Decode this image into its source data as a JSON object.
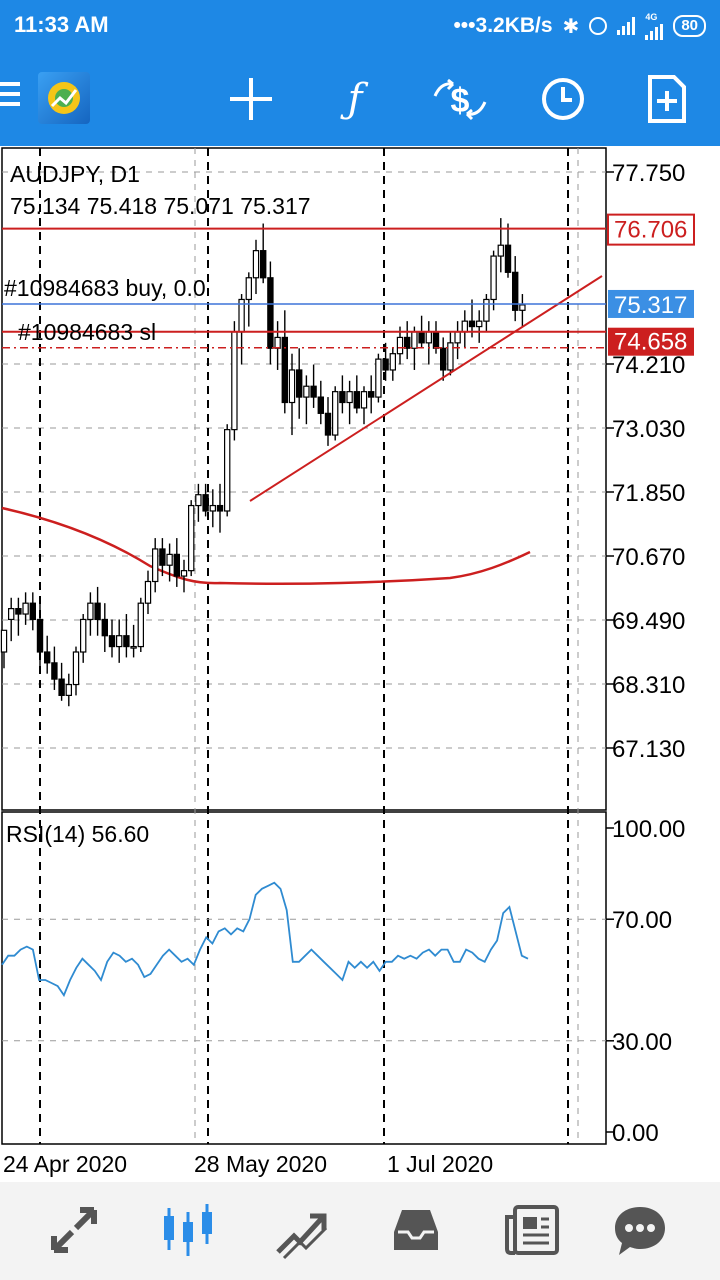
{
  "status_bar": {
    "time": "11:33 AM",
    "net_speed": "•••3.2KB/s",
    "network_type": "4G",
    "battery": "80",
    "icons": [
      "bluetooth-icon",
      "alarm-icon",
      "signal-icon",
      "wifi-signal-icon",
      "battery-icon"
    ]
  },
  "toolbar": {
    "icons": [
      "menu-icon",
      "app-logo-icon",
      "crosshair-icon",
      "indicators-icon",
      "currency-icon",
      "timeframe-clock-icon",
      "new-object-icon"
    ]
  },
  "chart": {
    "symbol": "AUDJPY, D1",
    "ohlc": "75.134 75.418 75.071 75.317",
    "order_label": "#10984683 buy, 0.0",
    "sl_label": "#10984683 sl",
    "price_axis": [
      "77.750",
      "74.210",
      "73.030",
      "71.850",
      "70.670",
      "69.490",
      "68.310",
      "67.130"
    ],
    "tags": {
      "resistance": "76.706",
      "current": "75.317",
      "stop_loss": "74.658"
    },
    "colors": {
      "up_candle": "#ffffff",
      "down_candle": "#000000",
      "red_line": "#cc1f1f",
      "current_price_line": "#3d74d9",
      "current_tag": "#3b8fe4",
      "rsi_line": "#2f8bd1"
    },
    "rsi": {
      "label": "RSI(14) 56.60",
      "axis": [
        "100.00",
        "70.00",
        "30.00",
        "0.00"
      ],
      "values": [
        55,
        58,
        58,
        60,
        61,
        60,
        50,
        50,
        49,
        48,
        45,
        50,
        54,
        57,
        55,
        53,
        50,
        56,
        59,
        58,
        56,
        57,
        55,
        51,
        52,
        55,
        58,
        60,
        58,
        56,
        57,
        55,
        60,
        64,
        62,
        66,
        67,
        65,
        67,
        66,
        70,
        78,
        80,
        81,
        82,
        80,
        73,
        56,
        56,
        58,
        60,
        58,
        56,
        54,
        52,
        50,
        56,
        54,
        56,
        54,
        56,
        53,
        56,
        56,
        58,
        57,
        58,
        57,
        59,
        60,
        58,
        60,
        60,
        56,
        56,
        60,
        59,
        57,
        56,
        60,
        63,
        72,
        74,
        66,
        58,
        57
      ]
    },
    "dates": [
      "24 Apr 2020",
      "28 May 2020",
      "1 Jul 2020"
    ]
  },
  "bottom_nav": {
    "items": [
      {
        "name": "quotes-tab",
        "icon": "arrows-icon",
        "active": false
      },
      {
        "name": "chart-tab",
        "icon": "candles-icon",
        "active": true
      },
      {
        "name": "trade-tab",
        "icon": "trend-icon",
        "active": false
      },
      {
        "name": "history-tab",
        "icon": "inbox-icon",
        "active": false
      },
      {
        "name": "news-tab",
        "icon": "newspaper-icon",
        "active": false
      },
      {
        "name": "chat-tab",
        "icon": "chat-icon",
        "active": false
      }
    ]
  }
}
